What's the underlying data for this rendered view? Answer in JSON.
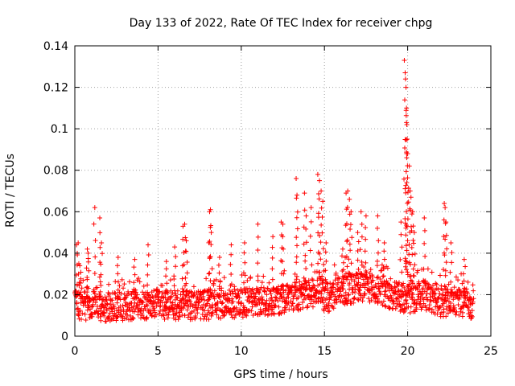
{
  "chart_data": {
    "type": "scatter",
    "title": "Day 133 of 2022, Rate Of TEC Index for receiver chpg",
    "xlabel": "GPS time / hours",
    "ylabel": "ROTI / TECUs",
    "xlim": [
      0,
      25
    ],
    "ylim": [
      0,
      0.14
    ],
    "x_ticks": [
      0,
      5,
      10,
      15,
      20,
      25
    ],
    "y_ticks": [
      0,
      0.02,
      0.04,
      0.06,
      0.08,
      0.1,
      0.12,
      0.14
    ],
    "x_tick_labels": [
      "0",
      "5",
      "10",
      "15",
      "20",
      "25"
    ],
    "y_tick_labels": [
      "0",
      "0.02",
      "0.04",
      "0.06",
      "0.08",
      "0.1",
      "0.12",
      "0.14"
    ],
    "grid": true,
    "marker": "+",
    "marker_color": "#ff0000",
    "series": [
      {
        "name": "ROTI",
        "baseline": [
          [
            0,
            0.015
          ],
          [
            2,
            0.014
          ],
          [
            4,
            0.015
          ],
          [
            6,
            0.015
          ],
          [
            8,
            0.015
          ],
          [
            10,
            0.016
          ],
          [
            12,
            0.017
          ],
          [
            13,
            0.019
          ],
          [
            14,
            0.02
          ],
          [
            14.7,
            0.022
          ],
          [
            15,
            0.018
          ],
          [
            15.5,
            0.02
          ],
          [
            16,
            0.022
          ],
          [
            17.5,
            0.024
          ],
          [
            19,
            0.02
          ],
          [
            20,
            0.018
          ],
          [
            21,
            0.02
          ],
          [
            22,
            0.016
          ],
          [
            23,
            0.017
          ],
          [
            24,
            0.015
          ]
        ],
        "peaks": [
          [
            0.1,
            0.044
          ],
          [
            0.2,
            0.045
          ],
          [
            0.3,
            0.034
          ],
          [
            0.75,
            0.042
          ],
          [
            0.8,
            0.04
          ],
          [
            1.2,
            0.062
          ],
          [
            1.5,
            0.057
          ],
          [
            1.6,
            0.045
          ],
          [
            2.6,
            0.038
          ],
          [
            3.6,
            0.037
          ],
          [
            4.4,
            0.044
          ],
          [
            5.5,
            0.036
          ],
          [
            6,
            0.043
          ],
          [
            6.5,
            0.053
          ],
          [
            6.6,
            0.054
          ],
          [
            6.7,
            0.046
          ],
          [
            8.1,
            0.06
          ],
          [
            8.15,
            0.061
          ],
          [
            8.2,
            0.05
          ],
          [
            8.7,
            0.038
          ],
          [
            9.4,
            0.044
          ],
          [
            10.2,
            0.045
          ],
          [
            11,
            0.054
          ],
          [
            11.9,
            0.048
          ],
          [
            12.4,
            0.055
          ],
          [
            12.5,
            0.054
          ],
          [
            13.3,
            0.076
          ],
          [
            13.35,
            0.068
          ],
          [
            13.8,
            0.069
          ],
          [
            13.9,
            0.058
          ],
          [
            14.2,
            0.062
          ],
          [
            14.6,
            0.078
          ],
          [
            14.7,
            0.075
          ],
          [
            14.8,
            0.07
          ],
          [
            14.9,
            0.065
          ],
          [
            15.1,
            0.045
          ],
          [
            16.1,
            0.042
          ],
          [
            16.3,
            0.069
          ],
          [
            16.4,
            0.07
          ],
          [
            16.5,
            0.066
          ],
          [
            16.6,
            0.06
          ],
          [
            17,
            0.05
          ],
          [
            17.2,
            0.06
          ],
          [
            17.5,
            0.058
          ],
          [
            18.2,
            0.058
          ],
          [
            18.6,
            0.045
          ],
          [
            19.6,
            0.055
          ],
          [
            19.8,
            0.133
          ],
          [
            19.85,
            0.127
          ],
          [
            19.87,
            0.124
          ],
          [
            19.9,
            0.12
          ],
          [
            19.93,
            0.11
          ],
          [
            19.95,
            0.102
          ],
          [
            19.97,
            0.095
          ],
          [
            20,
            0.088
          ],
          [
            20.1,
            0.082
          ],
          [
            20.15,
            0.07
          ],
          [
            20.2,
            0.067
          ],
          [
            20.3,
            0.06
          ],
          [
            20.4,
            0.05
          ],
          [
            21,
            0.057
          ],
          [
            22.2,
            0.064
          ],
          [
            22.25,
            0.062
          ],
          [
            22.3,
            0.055
          ],
          [
            22.6,
            0.045
          ],
          [
            23.4,
            0.037
          ]
        ]
      }
    ]
  }
}
